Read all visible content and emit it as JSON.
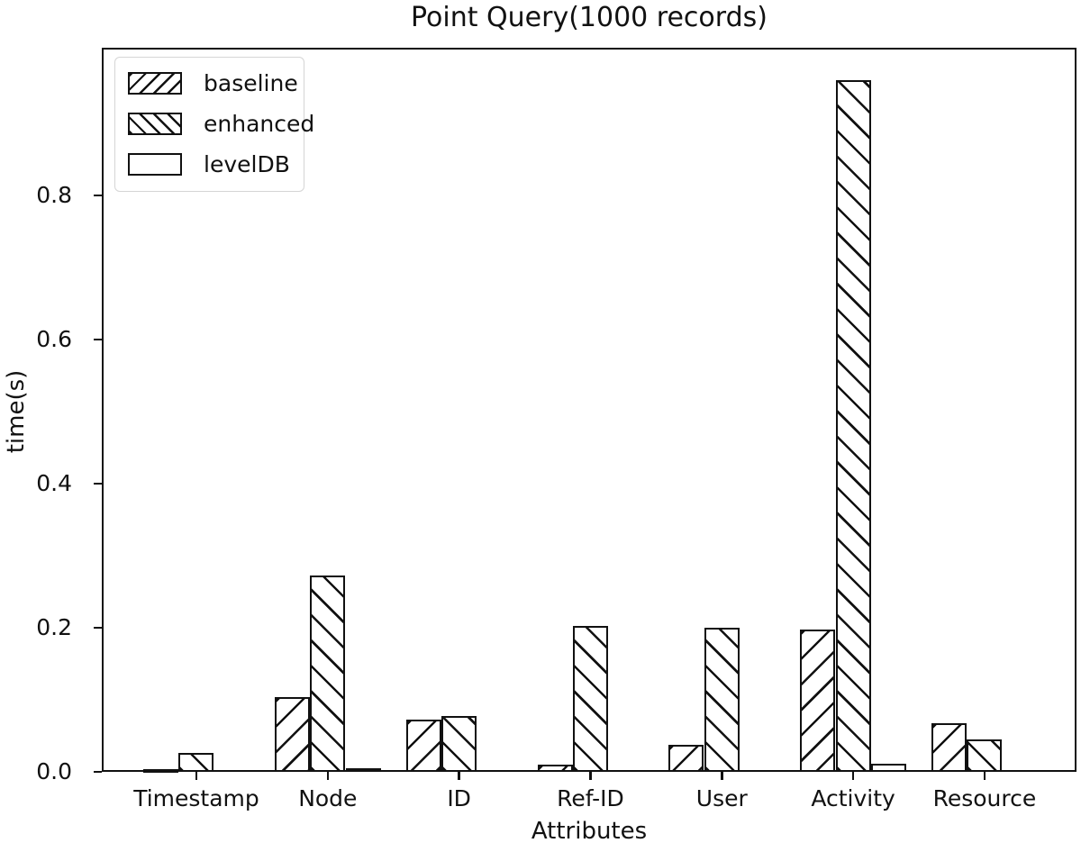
{
  "figure": {
    "title": "Point Query(1000 records)"
  },
  "chart_data": {
    "type": "bar",
    "title": "Point Query(1000 records)",
    "xlabel": "Attributes",
    "ylabel": "time(s)",
    "categories": [
      "Timestamp",
      "Node",
      "ID",
      "Ref-ID",
      "User",
      "Activity",
      "Resource"
    ],
    "series": [
      {
        "name": "baseline",
        "hatch": "/",
        "values": [
          0.004,
          0.104,
          0.072,
          0.01,
          0.037,
          0.198,
          0.067
        ]
      },
      {
        "name": "enhanced",
        "hatch": "\\",
        "values": [
          0.026,
          0.273,
          0.077,
          0.203,
          0.2,
          0.96,
          0.045
        ]
      },
      {
        "name": "levelDB",
        "hatch": "none",
        "values": [
          0.001,
          0.005,
          0.001,
          0.001,
          0.001,
          0.011,
          0.001
        ]
      }
    ],
    "ylim": [
      0,
      1.005
    ],
    "yticks": [
      "0.0",
      "0.2",
      "0.4",
      "0.6",
      "0.8"
    ],
    "legend": {
      "position": "upper left",
      "entries": [
        "baseline",
        "enhanced",
        "levelDB"
      ]
    },
    "grid": false,
    "bar_fill": "#ffffff",
    "edge_color": "#111111"
  }
}
